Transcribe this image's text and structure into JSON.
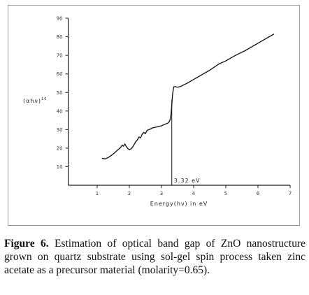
{
  "chart_data": {
    "type": "line",
    "xlabel": "Energy(hν) in eV",
    "ylabel": "(αhν)",
    "ylabel_sup": "10",
    "xlim": [
      0,
      7
    ],
    "ylim": [
      0,
      90
    ],
    "x_ticks": [
      1,
      2,
      3,
      4,
      5,
      6,
      7
    ],
    "y_ticks": [
      10,
      20,
      30,
      40,
      50,
      60,
      70,
      80,
      90
    ],
    "grid": false,
    "annotation": {
      "text": "3.32 eV",
      "x": 3.32
    },
    "series": [
      {
        "x": [
          1.15,
          1.25,
          1.35,
          1.45,
          1.55,
          1.65,
          1.72,
          1.78,
          1.82,
          1.86,
          1.9,
          1.95,
          2.0,
          2.05,
          2.1,
          2.15,
          2.2,
          2.25,
          2.3,
          2.35,
          2.4,
          2.45,
          2.5,
          2.55,
          2.6,
          2.65,
          2.7,
          2.8,
          2.9,
          3.0,
          3.1,
          3.2,
          3.25,
          3.28,
          3.3,
          3.32,
          3.34,
          3.36,
          3.38,
          3.42,
          3.5,
          3.6,
          3.8,
          4.0,
          4.2,
          4.5,
          4.8,
          5.0,
          5.3,
          5.6,
          5.9,
          6.1,
          6.3,
          6.5
        ],
        "y": [
          14.5,
          14.2,
          15.0,
          16.2,
          17.6,
          19.2,
          20.2,
          21.6,
          21.0,
          22.3,
          21.0,
          19.8,
          19.2,
          19.6,
          20.5,
          22.0,
          23.5,
          24.5,
          26.0,
          25.5,
          27.5,
          28.5,
          27.8,
          29.5,
          30.0,
          30.2,
          30.8,
          31.2,
          31.6,
          32.0,
          32.8,
          33.5,
          34.5,
          36.0,
          39.0,
          43.0,
          48.0,
          51.0,
          53.0,
          53.2,
          52.8,
          53.3,
          55.0,
          57.0,
          59.0,
          62.0,
          65.5,
          67.0,
          70.0,
          72.5,
          75.5,
          77.5,
          79.5,
          81.5
        ]
      }
    ]
  },
  "caption": {
    "label": "Figure 6.",
    "text": " Estimation of optical band gap of ZnO nanostructure grown on quartz substrate using sol-gel spin process taken zinc acetate as a precursor material (molarity=0.65)."
  }
}
